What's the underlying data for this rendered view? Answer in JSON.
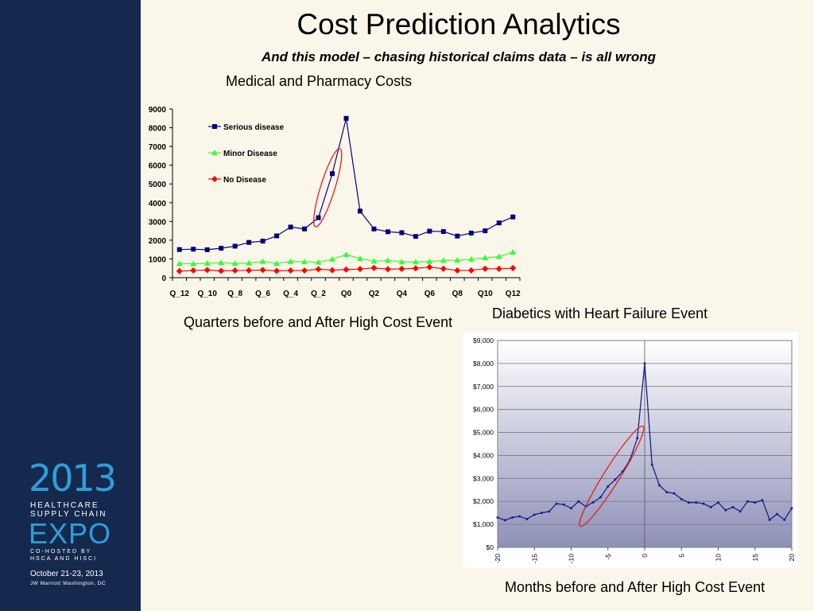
{
  "slide": {
    "title": "Cost Prediction Analytics",
    "subtitle": "And this model – chasing historical claims data – is all wrong"
  },
  "logo": {
    "year": "2013",
    "line1": "HEALTHCARE",
    "line2": "SUPPLY CHAIN",
    "expo": "EXPO",
    "cohost1": "CO-HOSTED BY",
    "cohost2": "HSCA AND HISCI",
    "dates": "October 21-23, 2013",
    "venue": "JW Marriott Washington, DC"
  },
  "colors": {
    "sidebar": "#15294F",
    "serious": "#000080",
    "minor": "#33FF33",
    "none": "#FF0000",
    "chart2_line": "#1A1F8A",
    "ellipse": "#E02020"
  },
  "chart_data": [
    {
      "type": "line",
      "title": "Medical and Pharmacy Costs",
      "xlabel": "Quarters before and After High Cost Event",
      "ylabel": "",
      "ylim": [
        0,
        9000
      ],
      "yticks": [
        "0",
        "1000",
        "2000",
        "3000",
        "4000",
        "5000",
        "6000",
        "7000",
        "8000",
        "9000"
      ],
      "categories": [
        "Q_12",
        "Q_11",
        "Q_10",
        "Q_9",
        "Q_8",
        "Q_7",
        "Q_6",
        "Q_5",
        "Q_4",
        "Q_3",
        "Q_2",
        "Q_1",
        "Q0",
        "Q1",
        "Q2",
        "Q3",
        "Q4",
        "Q5",
        "Q6",
        "Q7",
        "Q8",
        "Q9",
        "Q10",
        "Q11",
        "Q12"
      ],
      "tick_labels": [
        "Q_12",
        "Q_10",
        "Q_8",
        "Q_6",
        "Q_4",
        "Q_2",
        "Q0",
        "Q2",
        "Q4",
        "Q6",
        "Q8",
        "Q10",
        "Q12"
      ],
      "legend_position": "top-left",
      "series": [
        {
          "name": "Serious disease",
          "marker": "square",
          "values": [
            1500,
            1520,
            1490,
            1570,
            1680,
            1880,
            1950,
            2230,
            2700,
            2600,
            3200,
            5550,
            8500,
            3550,
            2600,
            2450,
            2400,
            2200,
            2480,
            2460,
            2220,
            2380,
            2500,
            2920,
            3240
          ]
        },
        {
          "name": "Minor Disease",
          "marker": "triangle",
          "values": [
            750,
            740,
            770,
            800,
            760,
            780,
            860,
            760,
            860,
            850,
            820,
            980,
            1230,
            1020,
            880,
            920,
            840,
            840,
            860,
            920,
            930,
            980,
            1060,
            1120,
            1360
          ]
        },
        {
          "name": "No Disease",
          "marker": "diamond",
          "values": [
            350,
            380,
            410,
            360,
            380,
            390,
            410,
            360,
            380,
            380,
            450,
            400,
            430,
            460,
            520,
            450,
            470,
            500,
            560,
            480,
            380,
            390,
            480,
            470,
            510
          ]
        }
      ]
    },
    {
      "type": "line",
      "title": "Diabetics with Heart Failure Event",
      "xlabel": "Months before and After High Cost Event",
      "ylabel": "",
      "ylim": [
        0,
        9000
      ],
      "xlim": [
        -20,
        20
      ],
      "yticks": [
        "$0",
        "$1,000",
        "$2,000",
        "$3,000",
        "$4,000",
        "$5,000",
        "$6,000",
        "$7,000",
        "$8,000",
        "$9,000"
      ],
      "xticks": [
        "-20",
        "-15",
        "-10",
        "-5",
        "0",
        "5",
        "10",
        "15",
        "20"
      ],
      "grid": true,
      "x": [
        -20,
        -19,
        -18,
        -17,
        -16,
        -15,
        -14,
        -13,
        -12,
        -11,
        -10,
        -9,
        -8,
        -7,
        -6,
        -5,
        -4,
        -3,
        -2,
        -1,
        0,
        1,
        2,
        3,
        4,
        5,
        6,
        7,
        8,
        9,
        10,
        11,
        12,
        13,
        14,
        15,
        16,
        17,
        18,
        19,
        20
      ],
      "series": [
        {
          "values": [
            1300,
            1180,
            1300,
            1350,
            1230,
            1420,
            1500,
            1560,
            1900,
            1860,
            1700,
            2000,
            1780,
            1960,
            2180,
            2650,
            2950,
            3300,
            3800,
            4750,
            8000,
            3600,
            2700,
            2400,
            2350,
            2100,
            1950,
            1950,
            1900,
            1750,
            1950,
            1620,
            1750,
            1560,
            2000,
            1950,
            2050,
            1200,
            1450,
            1200,
            1700
          ]
        }
      ]
    }
  ]
}
